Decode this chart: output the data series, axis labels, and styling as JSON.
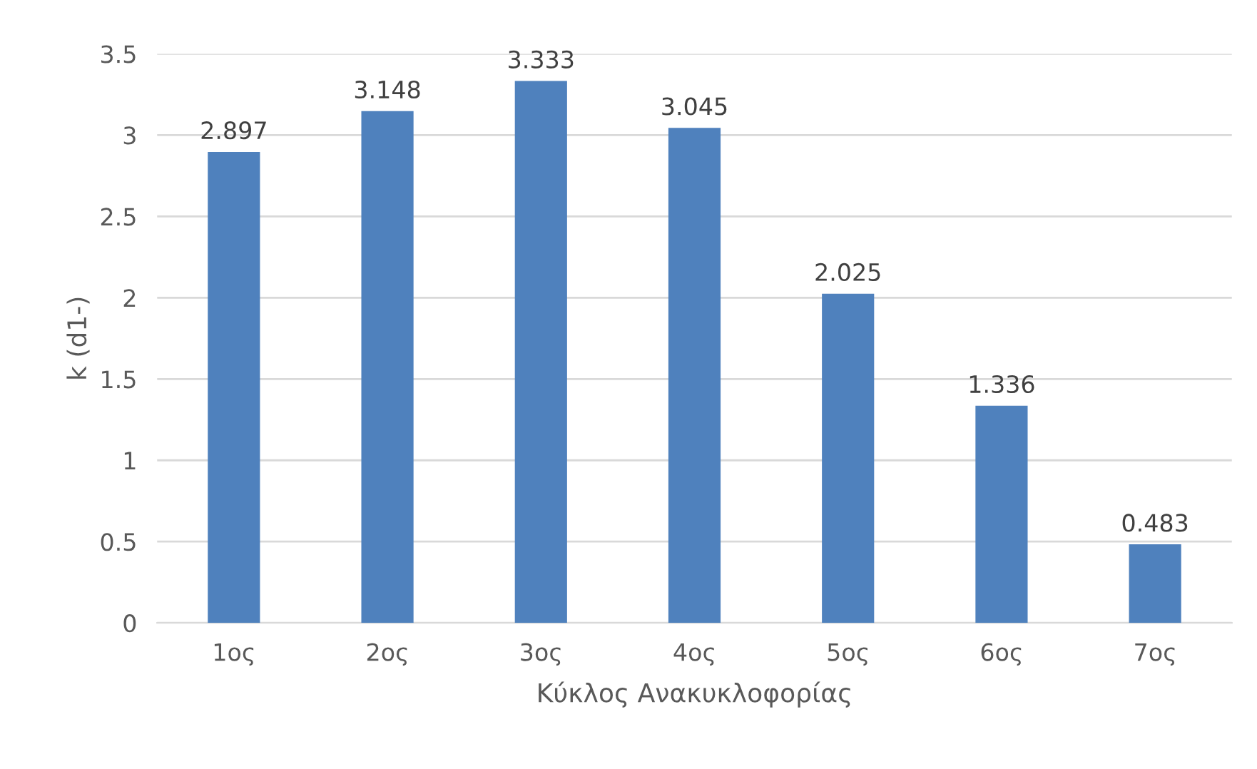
{
  "chart_data": {
    "type": "bar",
    "xlabel": "Κύκλος Ανακυκλοφορίας",
    "ylabel": "k (d1-)",
    "categories": [
      "1ος",
      "2ος",
      "3ος",
      "4ος",
      "5ος",
      "6ος",
      "7ος"
    ],
    "values": [
      2.897,
      3.148,
      3.333,
      3.045,
      2.025,
      1.336,
      0.483
    ],
    "color": "#4f81bd",
    "ylim": [
      0,
      3.5
    ],
    "yticks": [
      0,
      {
        "value": 0.5,
        "label": "0.5"
      },
      1,
      {
        "value": 1.5,
        "label": "1.5"
      },
      2,
      {
        "value": 2.5,
        "label": "2.5"
      },
      3,
      {
        "value": 3.5,
        "label": "3.5"
      }
    ],
    "grid": "y",
    "data_labels": true
  }
}
